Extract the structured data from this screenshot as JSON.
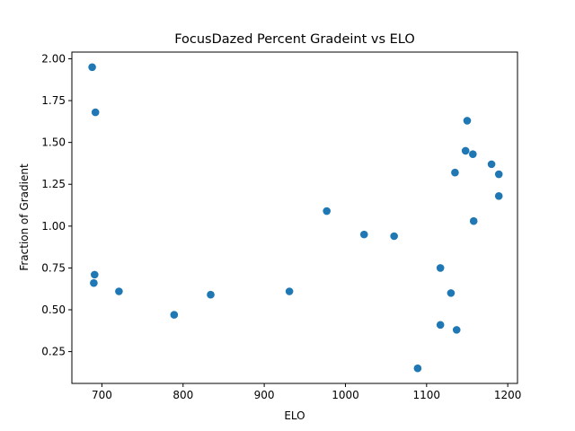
{
  "chart_data": {
    "type": "scatter",
    "title": "FocusDazed Percent Gradeint vs ELO",
    "xlabel": "ELO",
    "ylabel": "Fraction of Gradient",
    "xlim": [
      663,
      1212
    ],
    "ylim": [
      0.06,
      2.04
    ],
    "xticks": [
      700,
      800,
      900,
      1000,
      1100,
      1200
    ],
    "xtick_labels": [
      "700",
      "800",
      "900",
      "1000",
      "1100",
      "1200"
    ],
    "yticks": [
      0.25,
      0.5,
      0.75,
      1.0,
      1.25,
      1.5,
      1.75,
      2.0
    ],
    "ytick_labels": [
      "0.25",
      "0.50",
      "0.75",
      "1.00",
      "1.25",
      "1.50",
      "1.75",
      "2.00"
    ],
    "grid": false,
    "marker_color": "#1f77b4",
    "points": [
      {
        "x": 688,
        "y": 1.95
      },
      {
        "x": 692,
        "y": 1.68
      },
      {
        "x": 691,
        "y": 0.71
      },
      {
        "x": 690,
        "y": 0.66
      },
      {
        "x": 721,
        "y": 0.61
      },
      {
        "x": 789,
        "y": 0.47
      },
      {
        "x": 834,
        "y": 0.59
      },
      {
        "x": 931,
        "y": 0.61
      },
      {
        "x": 977,
        "y": 1.09
      },
      {
        "x": 1023,
        "y": 0.95
      },
      {
        "x": 1060,
        "y": 0.94
      },
      {
        "x": 1089,
        "y": 0.15
      },
      {
        "x": 1117,
        "y": 0.75
      },
      {
        "x": 1117,
        "y": 0.41
      },
      {
        "x": 1130,
        "y": 0.6
      },
      {
        "x": 1135,
        "y": 1.32
      },
      {
        "x": 1137,
        "y": 0.38
      },
      {
        "x": 1148,
        "y": 1.45
      },
      {
        "x": 1150,
        "y": 1.63
      },
      {
        "x": 1157,
        "y": 1.43
      },
      {
        "x": 1158,
        "y": 1.03
      },
      {
        "x": 1180,
        "y": 1.37
      },
      {
        "x": 1189,
        "y": 1.31
      },
      {
        "x": 1189,
        "y": 1.18
      }
    ]
  }
}
